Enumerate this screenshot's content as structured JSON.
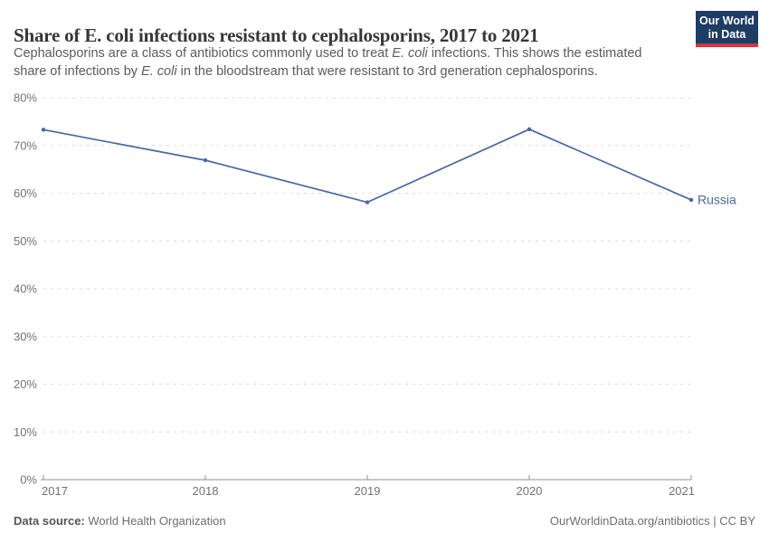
{
  "header": {
    "title": "Share of E. coli infections resistant to cephalosporins, 2017 to 2021",
    "subtitle_line1_part1": "Cephalosporins are a class of antibiotics commonly used to treat ",
    "subtitle_line1_italic": "E. coli",
    "subtitle_line1_part2": " infections. This shows the estimated",
    "subtitle_line2_part1": "share of infections by ",
    "subtitle_line2_italic": "E. coli",
    "subtitle_line2_part2": " in the bloodstream that were resistant to 3rd generation cephalosporins."
  },
  "logo": {
    "line1": "Our World",
    "line2": "in Data"
  },
  "chart_data": {
    "type": "line",
    "title": "Share of E. coli infections resistant to cephalosporins, 2017 to 2021",
    "x": [
      2017,
      2018,
      2019,
      2020,
      2021
    ],
    "series": [
      {
        "name": "Russia",
        "values": [
          73.3,
          66.9,
          58.1,
          73.4,
          58.6
        ],
        "color": "#4a66a0"
      }
    ],
    "xlabel": "",
    "ylabel": "",
    "ylim": [
      0,
      80
    ],
    "yticks": [
      0,
      10,
      20,
      30,
      40,
      50,
      60,
      70,
      80
    ],
    "ytick_suffix": "%",
    "grid": "horizontal dashed",
    "legend": "end-of-line label"
  },
  "footer": {
    "source_label": "Data source:",
    "source_value": " World Health Organization",
    "right_text": "OurWorldinData.org/antibiotics | CC BY"
  },
  "colors": {
    "line": "#4a66a0",
    "title": "#373737",
    "subtitle": "#5b5b5b",
    "tick_label": "#737373",
    "grid": "#dcdcdc",
    "axis": "#8f8f8f",
    "logo_bg": "#1d3d63",
    "logo_bar": "#d7333f"
  }
}
